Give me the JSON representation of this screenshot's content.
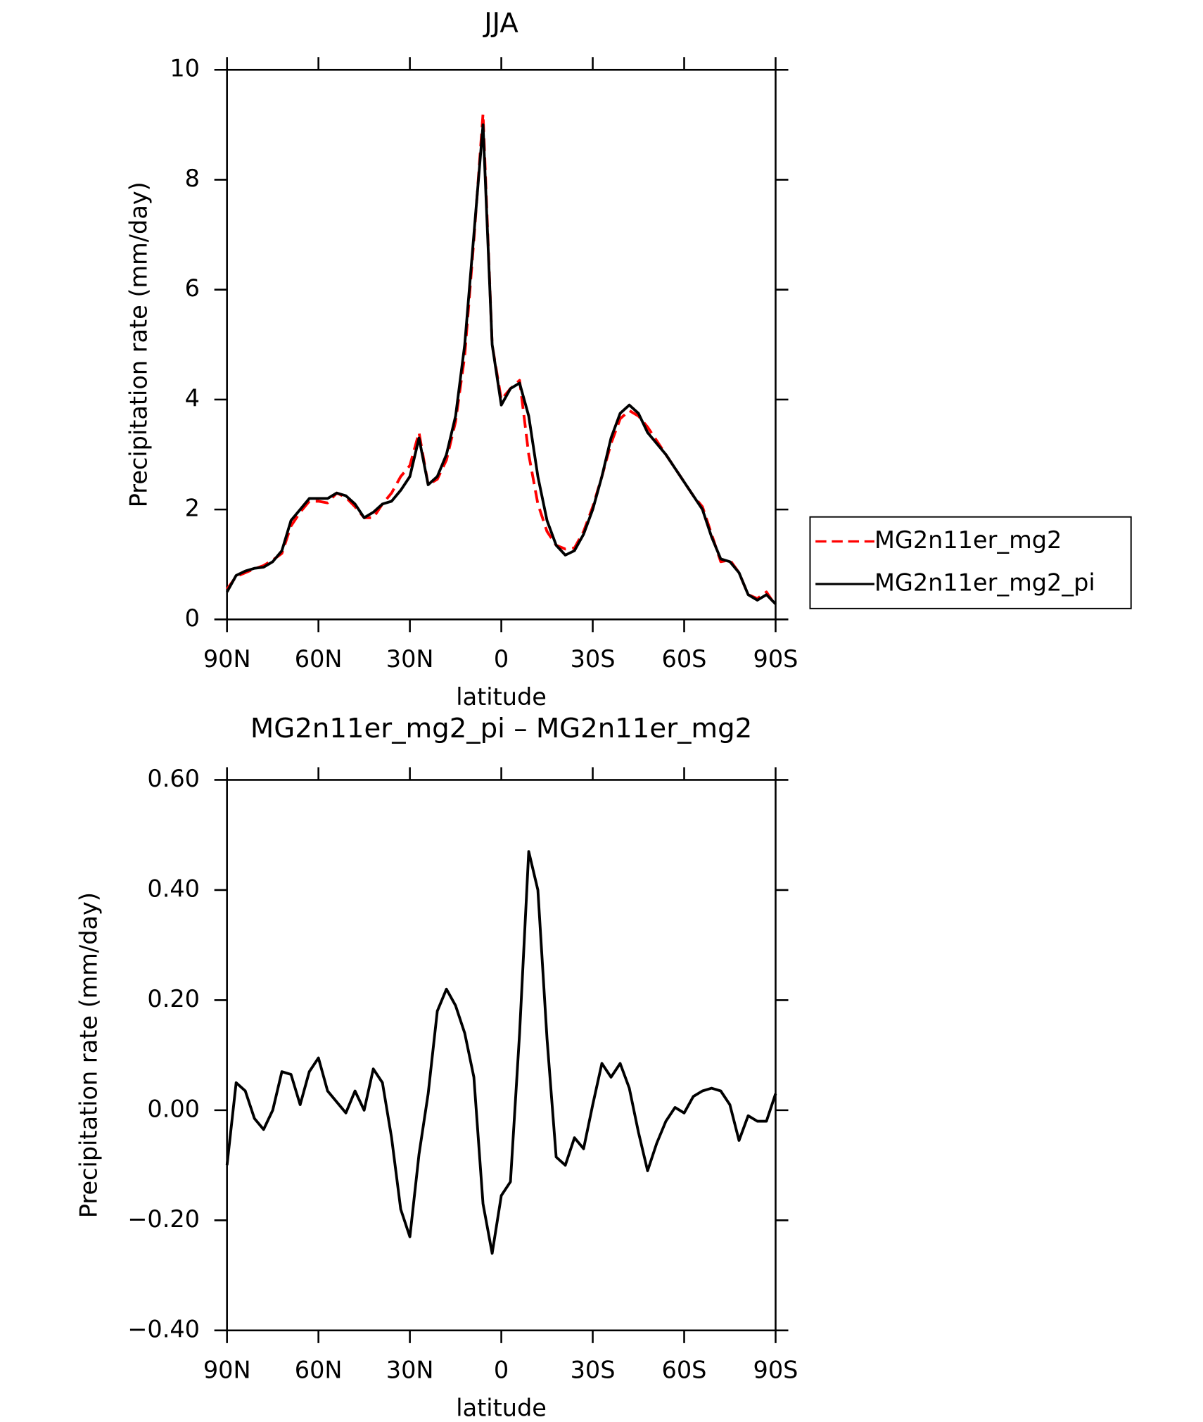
{
  "chart_data": [
    {
      "type": "line",
      "title": "JJA",
      "xlabel": "latitude",
      "ylabel": "Precipitation rate (mm/day)",
      "x": [
        90,
        87,
        84,
        81,
        78,
        75,
        72,
        69,
        66,
        63,
        60,
        57,
        54,
        51,
        48,
        45,
        42,
        39,
        36,
        33,
        30,
        27,
        24,
        21,
        18,
        15,
        12,
        9,
        6,
        3,
        0,
        -3,
        -6,
        -9,
        -12,
        -15,
        -18,
        -21,
        -24,
        -27,
        -30,
        -33,
        -36,
        -39,
        -42,
        -45,
        -48,
        -51,
        -54,
        -57,
        -60,
        -63,
        -66,
        -69,
        -72,
        -75,
        -78,
        -81,
        -84,
        -87,
        -90
      ],
      "series": [
        {
          "name": "MG2n11er_mg2",
          "color": "#ff0000",
          "linestyle": "dashed",
          "values": [
            0.55,
            0.78,
            0.85,
            0.92,
            0.98,
            1.08,
            1.2,
            1.7,
            1.95,
            2.15,
            2.15,
            2.12,
            2.3,
            2.22,
            2.05,
            1.85,
            1.85,
            2.1,
            2.3,
            2.6,
            2.8,
            3.4,
            2.45,
            2.55,
            2.9,
            3.6,
            4.8,
            6.9,
            9.2,
            5.0,
            4.0,
            4.2,
            4.35,
            3.0,
            2.1,
            1.6,
            1.35,
            1.28,
            1.3,
            1.6,
            2.05,
            2.6,
            3.2,
            3.65,
            3.8,
            3.7,
            3.5,
            3.25,
            3.0,
            2.75,
            2.5,
            2.25,
            2.05,
            1.55,
            1.05,
            1.08,
            0.85,
            0.45,
            0.38,
            0.5,
            0.25
          ]
        },
        {
          "name": "MG2n11er_mg2_pi",
          "color": "#000000",
          "linestyle": "solid",
          "values": [
            0.5,
            0.8,
            0.88,
            0.93,
            0.95,
            1.05,
            1.25,
            1.8,
            2.0,
            2.2,
            2.2,
            2.2,
            2.3,
            2.25,
            2.1,
            1.85,
            1.95,
            2.1,
            2.15,
            2.35,
            2.6,
            3.3,
            2.45,
            2.6,
            3.0,
            3.7,
            5.0,
            7.0,
            9.0,
            5.0,
            3.9,
            4.2,
            4.3,
            3.7,
            2.6,
            1.8,
            1.35,
            1.17,
            1.25,
            1.55,
            2.0,
            2.6,
            3.3,
            3.75,
            3.9,
            3.75,
            3.4,
            3.2,
            3.0,
            2.75,
            2.5,
            2.25,
            2.0,
            1.5,
            1.1,
            1.05,
            0.85,
            0.45,
            0.35,
            0.45,
            0.28
          ]
        }
      ],
      "xlim": [
        90,
        -90
      ],
      "xticks": [
        {
          "value": 90,
          "label": "90N"
        },
        {
          "value": 60,
          "label": "60N"
        },
        {
          "value": 30,
          "label": "30N"
        },
        0,
        {
          "value": -30,
          "label": "30S"
        },
        {
          "value": -60,
          "label": "60S"
        },
        {
          "value": -90,
          "label": "90S"
        }
      ],
      "ylim": [
        0,
        10
      ],
      "yticks": [
        0,
        2,
        4,
        6,
        8,
        10
      ],
      "legend": "right"
    },
    {
      "type": "line",
      "title": "MG2n11er_mg2_pi – MG2n11er_mg2",
      "xlabel": "latitude",
      "ylabel": "Precipitation rate (mm/day)",
      "x": [
        90,
        87,
        84,
        81,
        78,
        75,
        72,
        69,
        66,
        63,
        60,
        57,
        54,
        51,
        48,
        45,
        42,
        39,
        36,
        33,
        30,
        27,
        24,
        21,
        18,
        15,
        12,
        9,
        6,
        3,
        0,
        -3,
        -6,
        -9,
        -12,
        -15,
        -18,
        -21,
        -24,
        -27,
        -30,
        -33,
        -36,
        -39,
        -42,
        -45,
        -48,
        -51,
        -54,
        -57,
        -60,
        -63,
        -66,
        -69,
        -72,
        -75,
        -78,
        -81,
        -84,
        -87,
        -90
      ],
      "series": [
        {
          "color": "#000000",
          "linestyle": "solid",
          "values": [
            -0.1,
            0.05,
            0.035,
            -0.015,
            -0.035,
            0.0,
            0.07,
            0.065,
            0.01,
            0.07,
            0.095,
            0.035,
            0.015,
            -0.005,
            0.035,
            0.0,
            0.075,
            0.05,
            -0.05,
            -0.18,
            -0.23,
            -0.08,
            0.03,
            0.18,
            0.22,
            0.19,
            0.14,
            0.06,
            -0.17,
            -0.26,
            -0.155,
            -0.13,
            0.14,
            0.47,
            0.4,
            0.13,
            -0.085,
            -0.1,
            -0.05,
            -0.07,
            0.01,
            0.085,
            0.06,
            0.085,
            0.04,
            -0.04,
            -0.11,
            -0.06,
            -0.02,
            0.005,
            -0.005,
            0.025,
            0.035,
            0.04,
            0.035,
            0.01,
            -0.055,
            -0.01,
            -0.02,
            -0.02,
            0.03
          ]
        }
      ],
      "xlim": [
        90,
        -90
      ],
      "xticks": [
        {
          "value": 90,
          "label": "90N"
        },
        {
          "value": 60,
          "label": "60N"
        },
        {
          "value": 30,
          "label": "30N"
        },
        0,
        {
          "value": -30,
          "label": "30S"
        },
        {
          "value": -60,
          "label": "60S"
        },
        {
          "value": -90,
          "label": "90S"
        }
      ],
      "ylim": [
        -0.4,
        0.6
      ],
      "yticks": [
        {
          "value": -0.4,
          "label": "−0.40"
        },
        {
          "value": -0.2,
          "label": "−0.20"
        },
        {
          "value": 0,
          "label": "0.00"
        },
        {
          "value": 0.2,
          "label": "0.20"
        },
        {
          "value": 0.4,
          "label": "0.40"
        },
        {
          "value": 0.6,
          "label": "0.60"
        }
      ]
    }
  ]
}
